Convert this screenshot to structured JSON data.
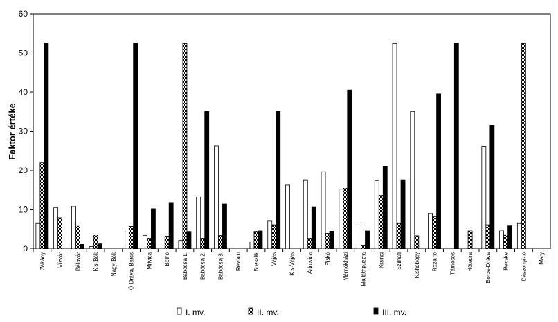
{
  "chart_data": {
    "type": "bar",
    "title": "",
    "xlabel": "",
    "ylabel": "Faktor értéke",
    "ylim": [
      0,
      60
    ],
    "yticks": [
      0,
      10,
      20,
      30,
      40,
      50,
      60
    ],
    "grid": false,
    "legend_position": "bottom",
    "categories": [
      "Zákány",
      "Vízvár",
      "Bélavár",
      "Kis-Bók",
      "Nagy-Bók",
      "Ó-Dráva, Barcs",
      "Mitvica",
      "Bolhó",
      "Babócsa 1.",
      "Babócsa 2.",
      "Babócsa 3.",
      "Révfalu",
      "Breszlik",
      "Vájás",
      "Kis-Vájás",
      "Adrovica",
      "Piskó",
      "Mérnökházi",
      "Majláthpuszta",
      "Kisinci",
      "Szilháti",
      "Kishobogy",
      "Roza-tó",
      "Támosos",
      "Hótedra",
      "Boros-Dráva",
      "Recske",
      "Dászonyi-tó",
      "Mary"
    ],
    "series": [
      {
        "name": "I. mv.",
        "color": "#ffffff",
        "pattern": "none",
        "values": [
          6.5,
          10.5,
          10.8,
          0.6,
          0,
          4.5,
          3.3,
          0,
          2,
          13.2,
          26.2,
          0,
          1.7,
          7.1,
          16.3,
          17.5,
          19.6,
          15,
          6.8,
          17.4,
          52.5,
          35,
          9,
          0,
          0,
          26.1,
          4.6,
          6.5,
          0
        ]
      },
      {
        "name": "II. mv.",
        "color": "#7f7f7f",
        "pattern": "crosshatch",
        "values": [
          22,
          7.8,
          5.8,
          3.4,
          0,
          5.6,
          2.6,
          3.1,
          52.5,
          2.6,
          3.3,
          0,
          4.4,
          6,
          0,
          2.6,
          3.8,
          15.4,
          0.8,
          13.6,
          6.5,
          3.2,
          8.2,
          0,
          4.6,
          6,
          3.5,
          52.5,
          0
        ]
      },
      {
        "name": "III. mv.",
        "color": "#000000",
        "pattern": "solid",
        "values": [
          52.5,
          0,
          1.1,
          1.3,
          0,
          52.5,
          10.1,
          11.7,
          4.3,
          35,
          11.5,
          0,
          4.6,
          35,
          0,
          10.6,
          4.4,
          40.5,
          4.6,
          21,
          17.5,
          0,
          39.5,
          52.5,
          0,
          31.5,
          5.9,
          0,
          0
        ]
      }
    ]
  }
}
